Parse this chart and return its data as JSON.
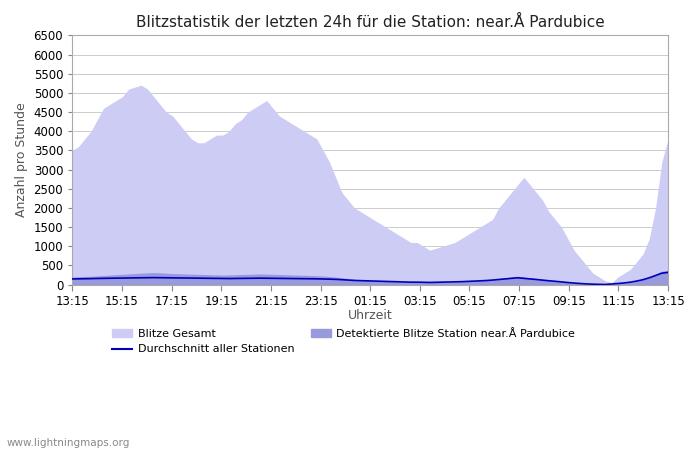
{
  "title": "Blitzstatistik der letzten 24h für die Station: near.Å Pardubice",
  "ylabel": "Anzahl pro Stunde",
  "xlabel": "Uhrzeit",
  "ylim": [
    0,
    6500
  ],
  "yticks": [
    0,
    500,
    1000,
    1500,
    2000,
    2500,
    3000,
    3500,
    4000,
    4500,
    5000,
    5500,
    6000,
    6500
  ],
  "xtick_labels": [
    "13:15",
    "15:15",
    "17:15",
    "19:15",
    "21:15",
    "23:15",
    "01:15",
    "03:15",
    "05:15",
    "07:15",
    "09:15",
    "11:15",
    "13:15"
  ],
  "watermark": "www.lightningmaps.org",
  "color_gesamt": "#ccccf5",
  "color_detektiert": "#9999dd",
  "color_avg_line": "#0000bb",
  "legend_gesamt": "Blitze Gesamt",
  "legend_avg": "Durchschnitt aller Stationen",
  "legend_detektiert": "Detektierte Blitze Station near.Å Pardubice",
  "bg_color": "#ffffff",
  "grid_color": "#cccccc",
  "title_fontsize": 11,
  "label_fontsize": 9,
  "tick_fontsize": 8.5,
  "x_values": [
    0,
    1,
    2,
    3,
    4,
    5,
    6,
    7,
    8,
    9,
    10,
    11,
    12,
    13,
    14,
    15,
    16,
    17,
    18,
    19,
    20,
    21,
    22,
    23,
    24,
    25,
    26,
    27,
    28,
    29,
    30,
    31,
    32,
    33,
    34,
    35,
    36,
    37,
    38,
    39,
    40,
    41,
    42,
    43,
    44,
    45,
    46,
    47,
    48,
    49,
    50,
    51,
    52,
    53,
    54,
    55,
    56,
    57,
    58,
    59,
    60,
    61,
    62,
    63,
    64,
    65,
    66,
    67,
    68,
    69,
    70,
    71,
    72,
    73,
    74,
    75,
    76,
    77,
    78,
    79,
    80,
    81,
    82,
    83,
    84,
    85,
    86,
    87,
    88,
    89,
    90,
    91,
    92,
    93,
    94,
    95
  ],
  "gesamt": [
    3500,
    3600,
    3800,
    4000,
    4300,
    4600,
    4700,
    4800,
    4900,
    5100,
    5150,
    5200,
    5100,
    4900,
    4700,
    4500,
    4400,
    4200,
    4000,
    3800,
    3700,
    3700,
    3800,
    3900,
    3900,
    4000,
    4200,
    4300,
    4500,
    4600,
    4700,
    4800,
    4600,
    4400,
    4300,
    4200,
    4100,
    4000,
    3900,
    3800,
    3500,
    3200,
    2800,
    2400,
    2200,
    2000,
    1900,
    1800,
    1700,
    1600,
    1500,
    1400,
    1300,
    1200,
    1100,
    1100,
    1000,
    900,
    950,
    1000,
    1050,
    1100,
    1200,
    1300,
    1400,
    1500,
    1600,
    1700,
    2000,
    2200,
    2400,
    2600,
    2800,
    2600,
    2400,
    2200,
    1900,
    1700,
    1500,
    1200,
    900,
    700,
    500,
    300,
    200,
    100,
    50,
    200,
    300,
    400,
    600,
    800,
    1200,
    2000,
    3200,
    3800
  ],
  "detektiert": [
    200,
    210,
    215,
    220,
    230,
    240,
    250,
    260,
    270,
    280,
    290,
    300,
    310,
    315,
    310,
    300,
    290,
    285,
    280,
    275,
    270,
    265,
    260,
    255,
    250,
    255,
    260,
    265,
    270,
    275,
    280,
    275,
    270,
    265,
    260,
    255,
    250,
    245,
    240,
    235,
    225,
    215,
    200,
    180,
    160,
    140,
    130,
    120,
    110,
    100,
    90,
    80,
    75,
    70,
    65,
    65,
    60,
    55,
    60,
    65,
    70,
    75,
    80,
    90,
    100,
    110,
    120,
    140,
    160,
    180,
    200,
    220,
    200,
    180,
    160,
    140,
    120,
    100,
    80,
    60,
    40,
    25,
    15,
    10,
    5,
    3,
    15,
    25,
    40,
    60,
    90,
    130,
    180,
    270,
    350,
    380
  ],
  "avg_line": [
    150,
    152,
    155,
    158,
    162,
    165,
    168,
    170,
    172,
    175,
    178,
    180,
    182,
    184,
    182,
    180,
    178,
    176,
    174,
    172,
    170,
    168,
    166,
    164,
    162,
    160,
    162,
    164,
    166,
    168,
    170,
    168,
    166,
    164,
    162,
    160,
    158,
    156,
    154,
    152,
    148,
    144,
    138,
    130,
    120,
    110,
    105,
    100,
    95,
    90,
    85,
    80,
    75,
    70,
    65,
    65,
    62,
    58,
    62,
    66,
    70,
    74,
    78,
    85,
    92,
    100,
    108,
    120,
    135,
    150,
    165,
    180,
    165,
    150,
    135,
    118,
    102,
    88,
    72,
    56,
    42,
    30,
    20,
    13,
    8,
    5,
    18,
    30,
    45,
    65,
    95,
    130,
    180,
    240,
    300,
    320
  ]
}
